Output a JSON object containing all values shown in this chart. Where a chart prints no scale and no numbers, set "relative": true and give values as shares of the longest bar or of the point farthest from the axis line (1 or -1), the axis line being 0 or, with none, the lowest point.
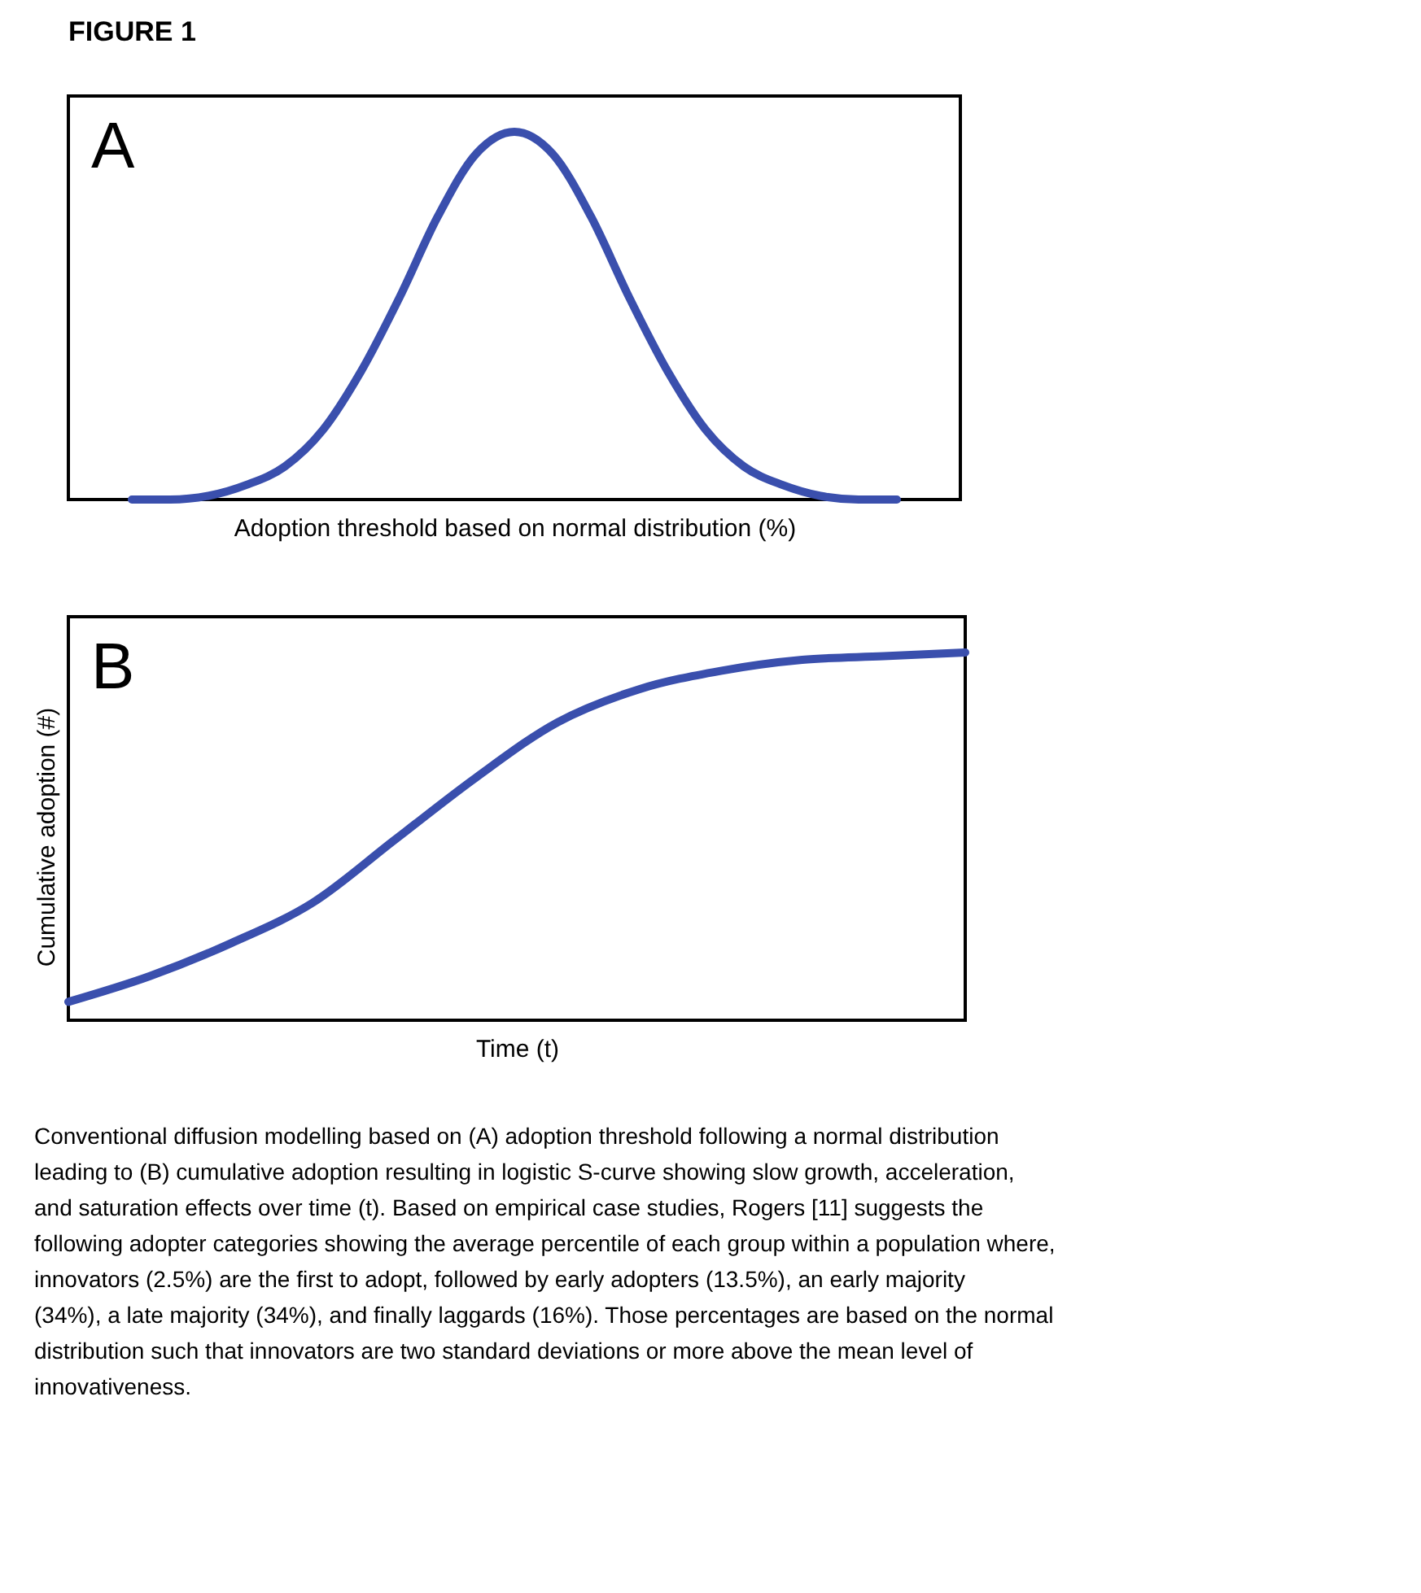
{
  "chart_data": [
    {
      "type": "line",
      "title": "FIGURE 1",
      "relative": true,
      "xlabel": "Adoption threshold based on normal distribution (%)",
      "annotations": [
        "A"
      ],
      "tick_labels": false,
      "grid": false,
      "marker": "none",
      "line_style": "solid",
      "categories": [
        null,
        null,
        null,
        null,
        null,
        null,
        null,
        null,
        null,
        null,
        null,
        null,
        null,
        null,
        null,
        null,
        null,
        null,
        null,
        null,
        null
      ],
      "series": [
        {
          "color": "#3a4fad",
          "values": [
            0,
            0,
            0.01,
            0.04,
            0.09,
            0.19,
            0.35,
            0.55,
            0.77,
            0.94,
            1,
            0.94,
            0.77,
            0.55,
            0.35,
            0.19,
            0.09,
            0.04,
            0.01,
            0,
            0
          ]
        }
      ]
    },
    {
      "type": "line",
      "relative": true,
      "xlabel": "Time (t)",
      "ylabel": "Cumulative adoption (#)",
      "annotations": [
        "B",
        "Conventional diffusion modelling based on (A) adoption threshold following a normal distribution leading to (B) cumulative adoption resulting in logistic S-curve showing slow growth, acceleration, and saturation effects over time (t). Based on empirical case studies, Rogers [11] suggests the following adopter categories showing the average percentile of each group within a population where, innovators (2.5%) are the first to adopt, followed by early adopters (13.5%), an early majority (34%), a late majority (34%), and finally laggards (16%). Those percentages are based on the normal distribution such that innovators are two standard deviations or more above the mean level of innovativeness."
      ],
      "tick_labels": false,
      "grid": false,
      "marker": "none",
      "line_style": "solid",
      "categories": [
        null,
        null,
        null,
        null,
        null,
        null,
        null,
        null,
        null,
        null,
        null,
        null
      ],
      "series": [
        {
          "color": "#3a4fad",
          "values": [
            0.05,
            0.12,
            0.21,
            0.32,
            0.49,
            0.66,
            0.81,
            0.9,
            0.95,
            0.98,
            0.99,
            1
          ]
        }
      ]
    }
  ]
}
